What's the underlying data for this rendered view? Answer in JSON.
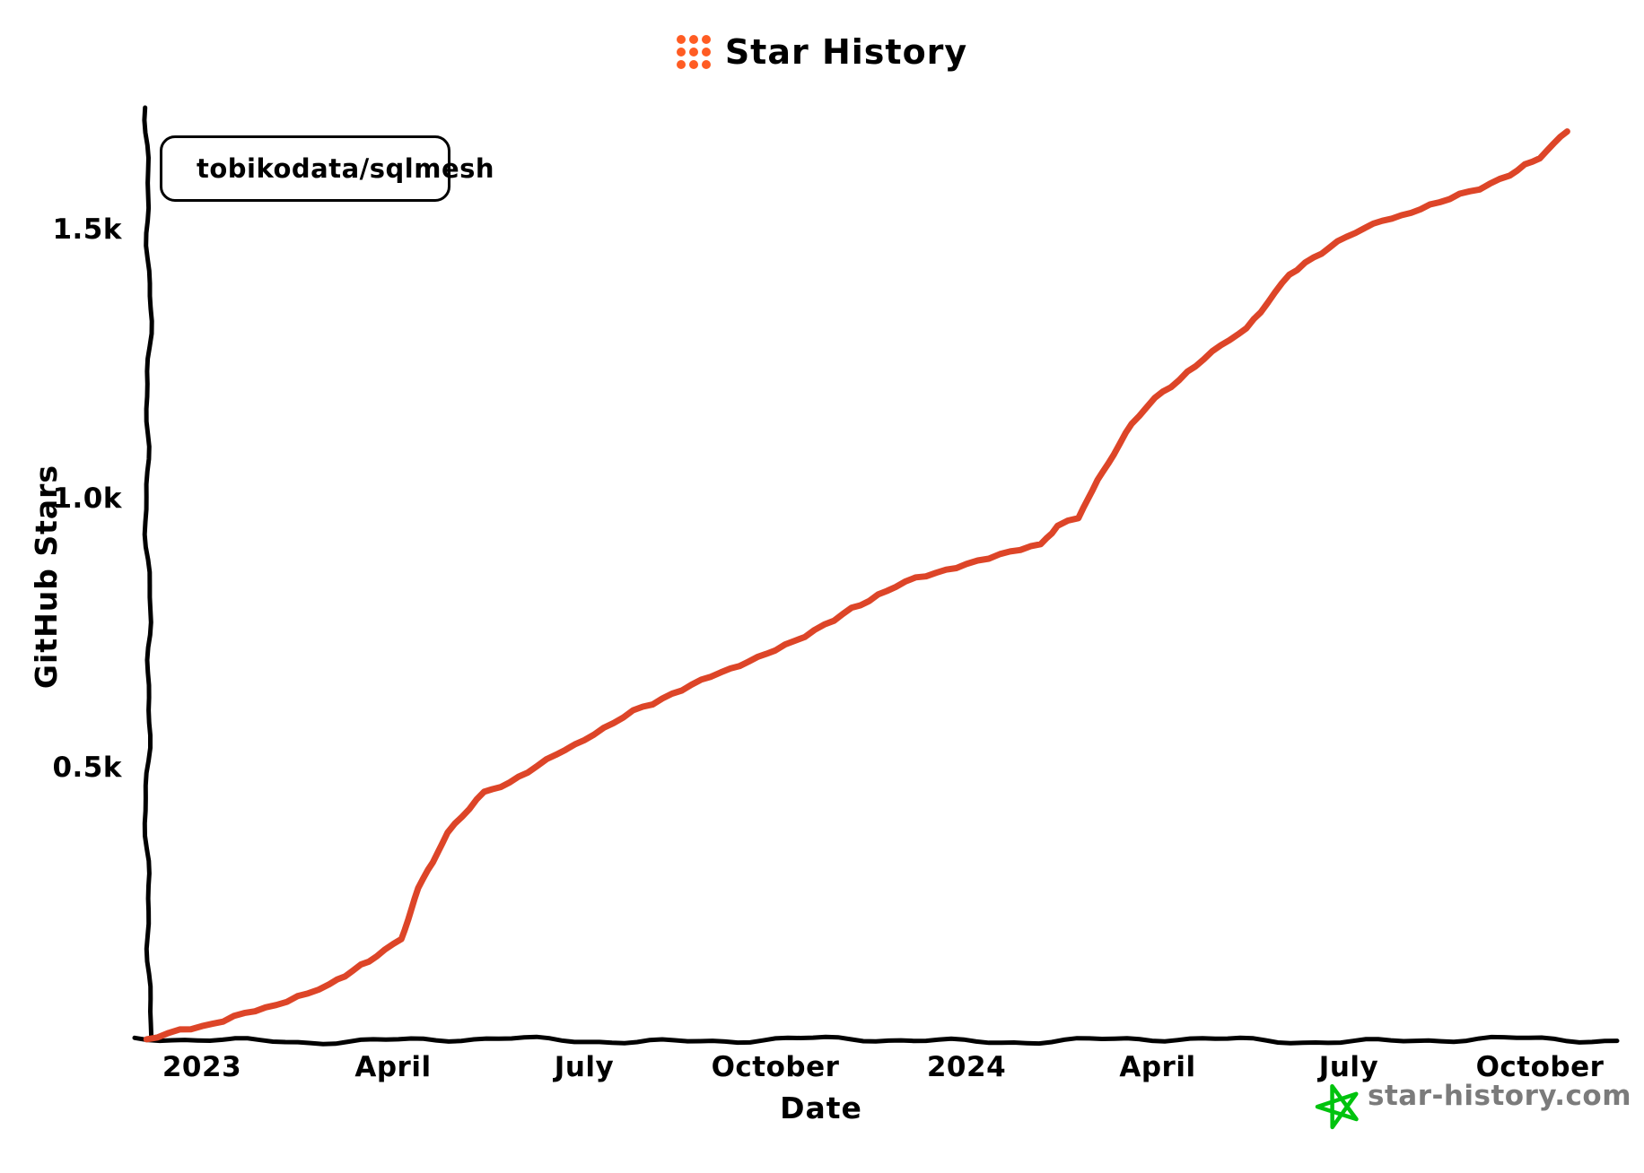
{
  "title": {
    "text": "Star History"
  },
  "colors": {
    "logo_orange": "#ff5c23",
    "series_red": "#dd4528",
    "axis_black": "#000000",
    "watermark_green": "#00c30e",
    "watermark_gray": "#7b7b7b"
  },
  "legend": {
    "items": [
      {
        "label": "tobikodata/sqlmesh",
        "color": "#dd4528"
      }
    ]
  },
  "watermark": {
    "text": "star-history.com"
  },
  "chart_data": {
    "type": "line",
    "title": "Star History",
    "xlabel": "Date",
    "ylabel": "GitHub Stars",
    "grid": false,
    "legend_position": "top-left",
    "x_start": "2023-01",
    "x_tick_interval_months": 3,
    "x_tick_labels": [
      "2023",
      "April",
      "July",
      "October",
      "2024",
      "April",
      "July",
      "October"
    ],
    "y_ticks": [
      500,
      1000,
      1500
    ],
    "y_tick_labels": [
      "0.5k",
      "1.0k",
      "1.5k"
    ],
    "ylim": [
      0,
      1750
    ],
    "x_range": [
      "2022-12-05",
      "2024-10-14"
    ],
    "series": [
      {
        "name": "tobikodata/sqlmesh",
        "color": "#dd4528",
        "points": [
          [
            "2022-12-05",
            0
          ],
          [
            "2023-01-01",
            25
          ],
          [
            "2023-02-01",
            58
          ],
          [
            "2023-03-01",
            100
          ],
          [
            "2023-03-16",
            138
          ],
          [
            "2023-04-05",
            185
          ],
          [
            "2023-04-13",
            280
          ],
          [
            "2023-04-27",
            385
          ],
          [
            "2023-05-14",
            458
          ],
          [
            "2023-05-26",
            478
          ],
          [
            "2023-06-09",
            508
          ],
          [
            "2023-07-01",
            558
          ],
          [
            "2023-07-29",
            618
          ],
          [
            "2023-09-10",
            690
          ],
          [
            "2023-10-01",
            722
          ],
          [
            "2023-10-29",
            780
          ],
          [
            "2023-11-28",
            844
          ],
          [
            "2024-01-01",
            884
          ],
          [
            "2024-01-17",
            900
          ],
          [
            "2024-02-06",
            922
          ],
          [
            "2024-02-14",
            953
          ],
          [
            "2024-02-24",
            970
          ],
          [
            "2024-03-05",
            1055
          ],
          [
            "2024-03-19",
            1143
          ],
          [
            "2024-03-30",
            1190
          ],
          [
            "2024-04-23",
            1265
          ],
          [
            "2024-05-13",
            1322
          ],
          [
            "2024-06-03",
            1420
          ],
          [
            "2024-06-26",
            1484
          ],
          [
            "2024-07-17",
            1521
          ],
          [
            "2024-08-14",
            1555
          ],
          [
            "2024-09-17",
            1605
          ],
          [
            "2024-10-01",
            1640
          ],
          [
            "2024-10-14",
            1690
          ]
        ]
      }
    ]
  }
}
